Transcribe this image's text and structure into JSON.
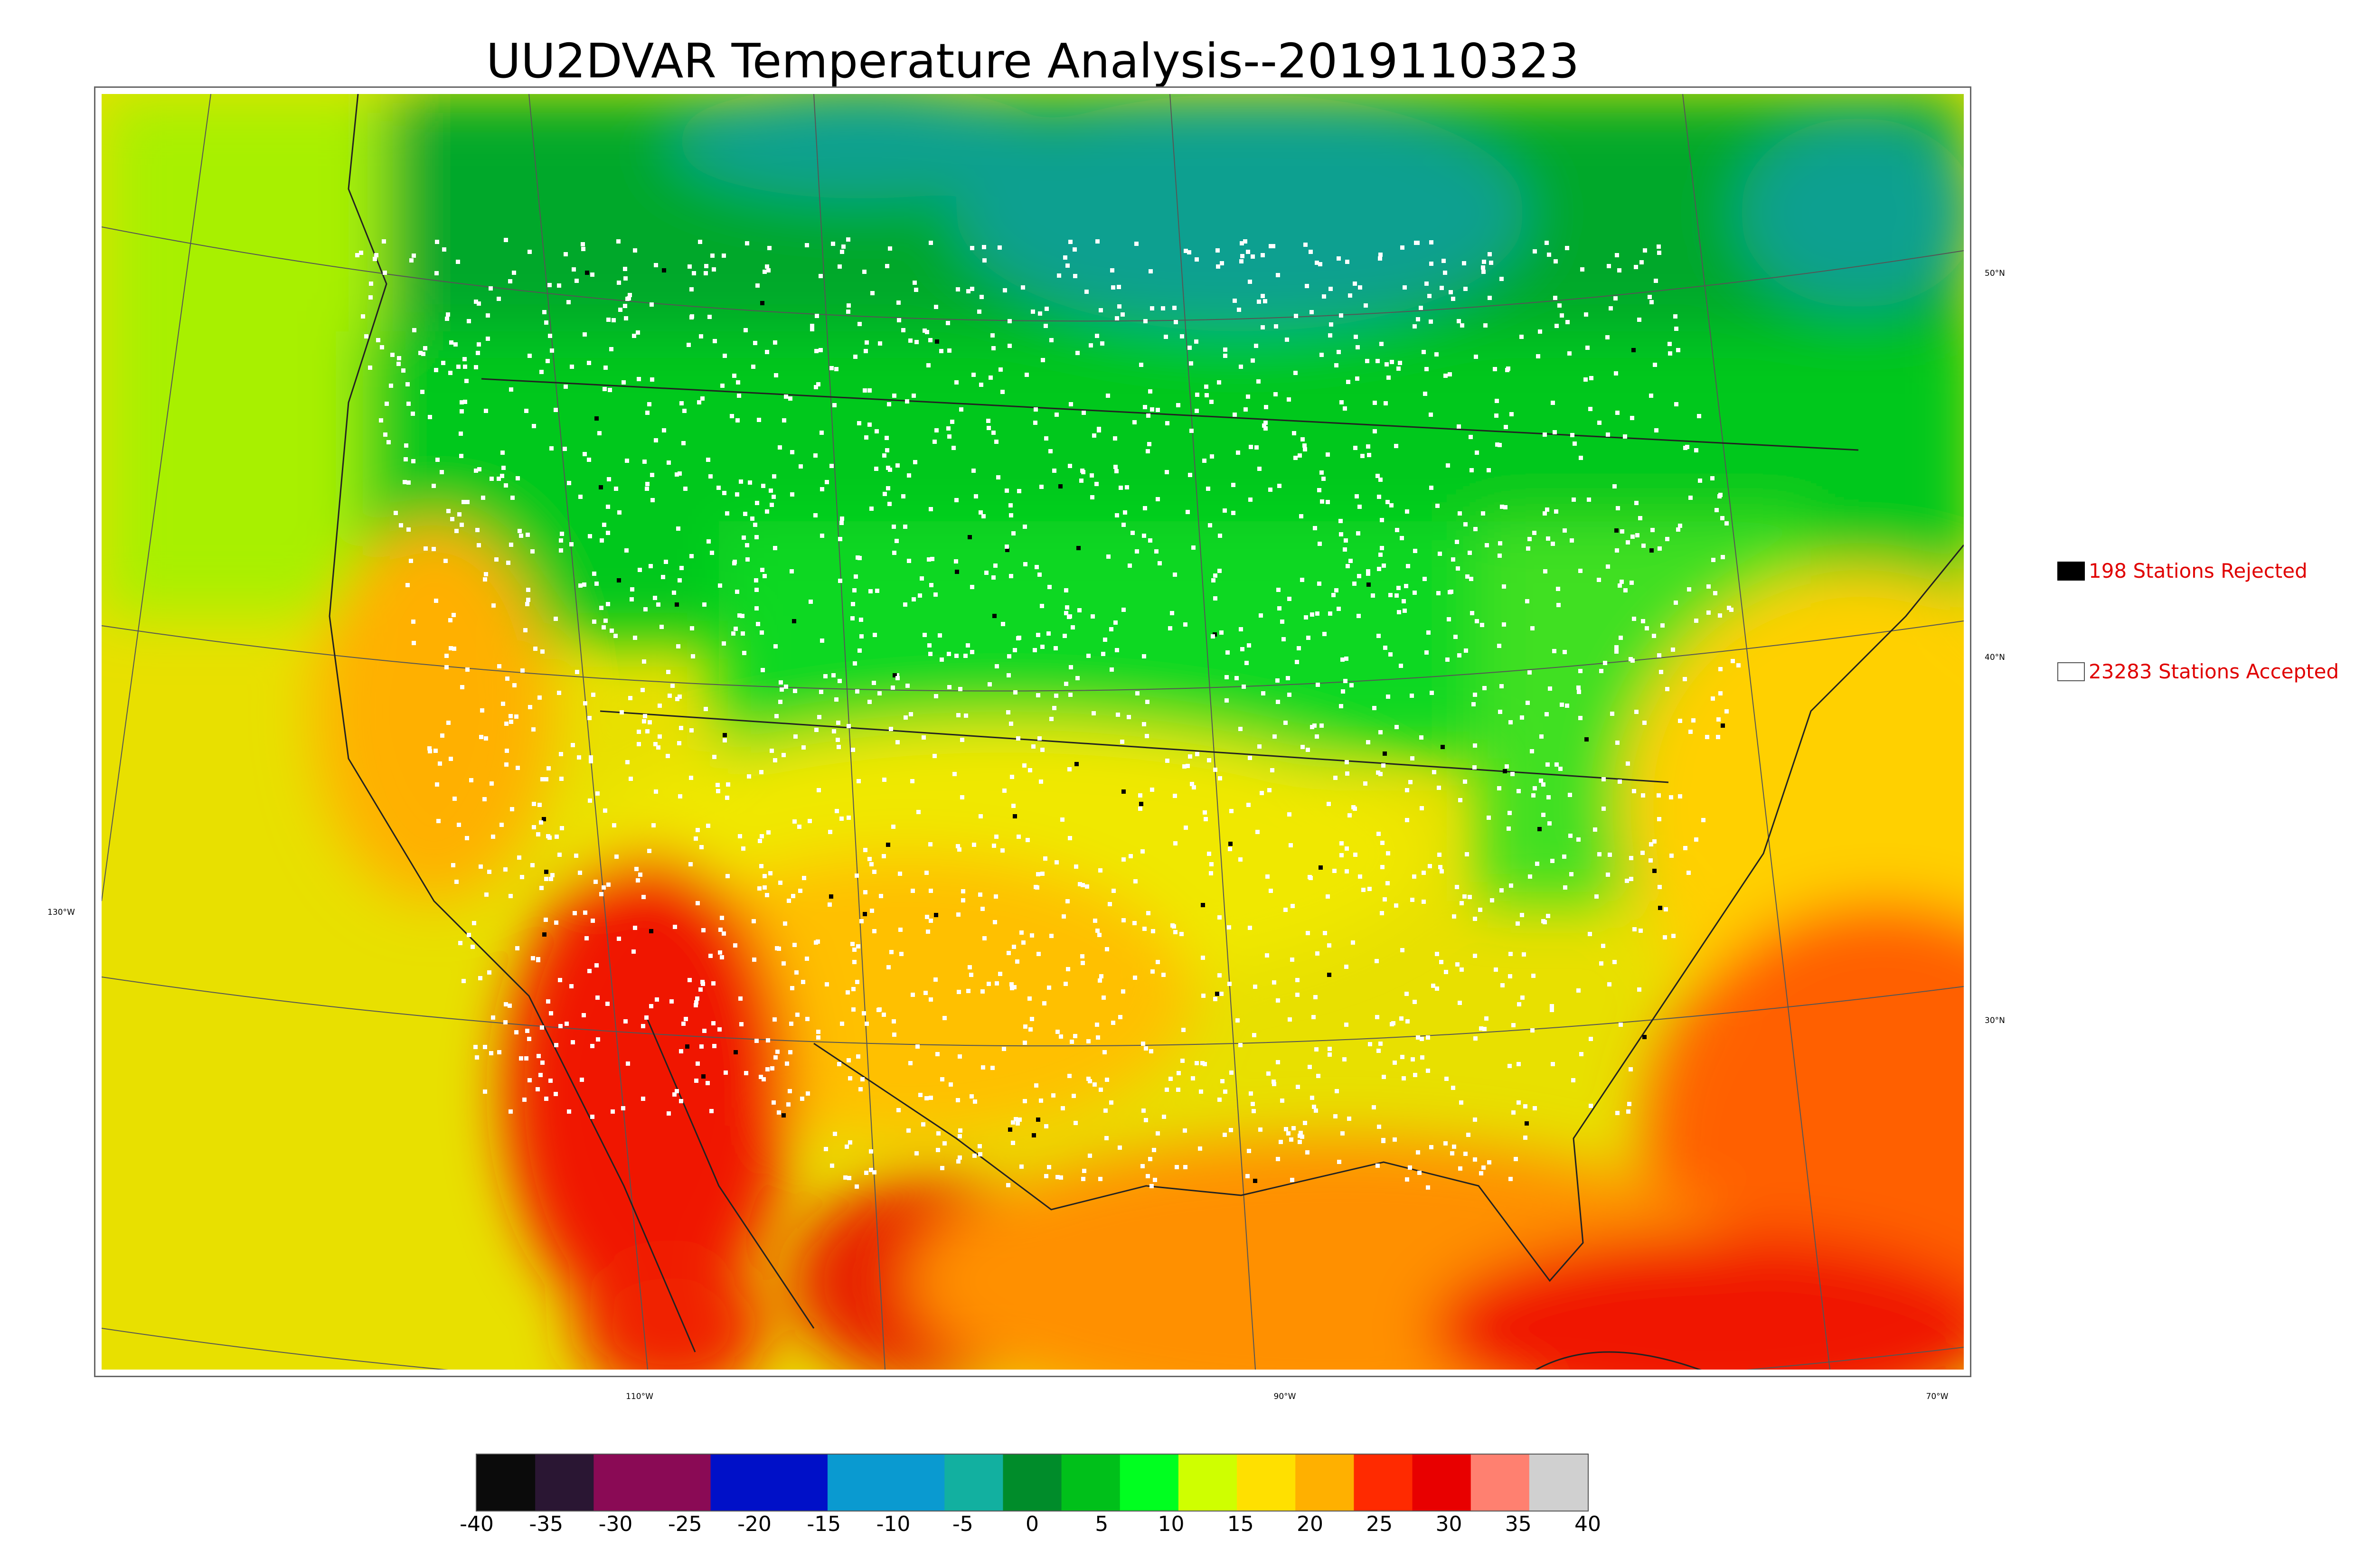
{
  "title": "UU2DVAR Temperature Analysis--2019110323",
  "lon_labels": [
    "110°W",
    "90°W",
    "70°W"
  ],
  "lat_labels": [
    "50°N",
    "40°N",
    "30°N"
  ],
  "left_lon_label": "130°W",
  "legend": {
    "rejected": "198 Stations Rejected",
    "accepted": "23283 Stations Accepted"
  },
  "colorbar": {
    "min": -40,
    "max": 40,
    "ticks": [
      "-40",
      "-35",
      "-30",
      "-25",
      "-20",
      "-15",
      "-10",
      "-5",
      "0",
      "5",
      "10",
      "15",
      "20",
      "25",
      "30",
      "35",
      "40"
    ],
    "colors": [
      "#0b0b0b",
      "#2a1633",
      "#8a0a55",
      "#8a0a55",
      "#0010c8",
      "#0010c8",
      "#0a9ad0",
      "#0a9ad0",
      "#12b0a0",
      "#008c2a",
      "#00c01a",
      "#00ff20",
      "#cfff00",
      "#ffe000",
      "#ffb000",
      "#ff2a00",
      "#e80000",
      "#ff8070",
      "#d0d0d0"
    ]
  },
  "colors": {
    "cold_green": "#00a020",
    "mid_green": "#00e020",
    "yellow": "#f0e000",
    "orange": "#ffa000",
    "red": "#f01000",
    "accepted_station": "#ffffff",
    "rejected_station": "#000000",
    "legend_text": "#e00000"
  }
}
